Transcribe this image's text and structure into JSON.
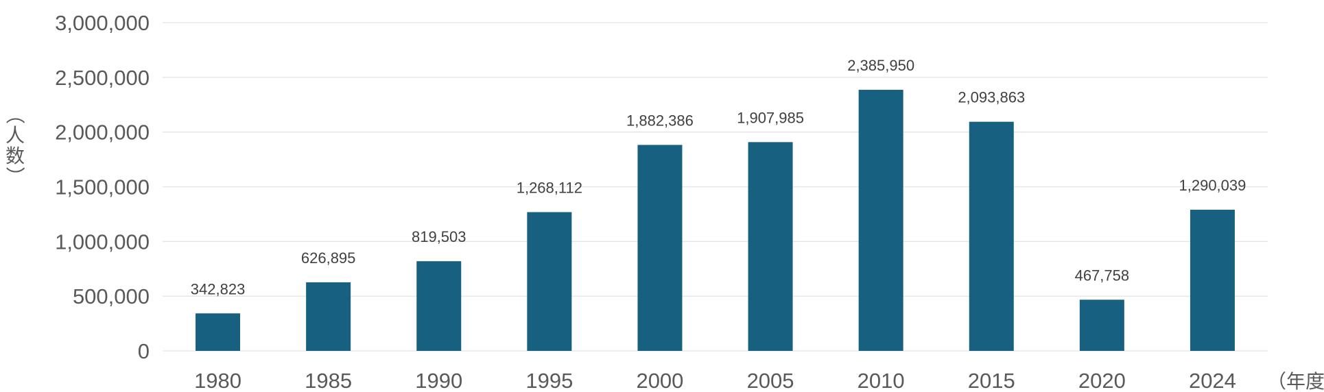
{
  "chart_data": {
    "type": "bar",
    "categories": [
      "1980",
      "1985",
      "1990",
      "1995",
      "2000",
      "2005",
      "2010",
      "2015",
      "2020",
      "2024"
    ],
    "values": [
      342823,
      626895,
      819503,
      1268112,
      1882386,
      1907985,
      2385950,
      2093863,
      467758,
      1290039
    ],
    "value_labels": [
      "342,823",
      "626,895",
      "819,503",
      "1,268,112",
      "1,882,386",
      "1,907,985",
      "2,385,950",
      "2,093,863",
      "467,758",
      "1,290,039"
    ],
    "y_ticks": [
      0,
      500000,
      1000000,
      1500000,
      2000000,
      2500000,
      3000000
    ],
    "y_tick_labels": [
      "0",
      "500,000",
      "1,000,000",
      "1,500,000",
      "2,000,000",
      "2,500,000",
      "3,000,000"
    ],
    "ylim": [
      0,
      3000000
    ],
    "ylabel": "（人数）",
    "xlabel": "（年度）",
    "grid": true,
    "legend": "none",
    "bar_color": "#17607f"
  }
}
